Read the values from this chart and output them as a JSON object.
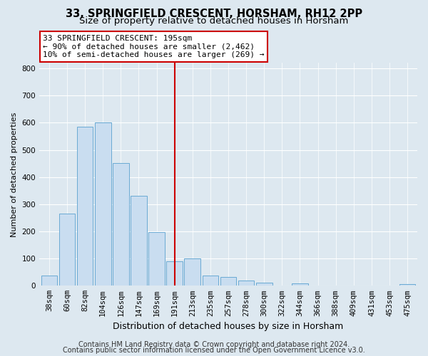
{
  "title": "33, SPRINGFIELD CRESCENT, HORSHAM, RH12 2PP",
  "subtitle": "Size of property relative to detached houses in Horsham",
  "xlabel": "Distribution of detached houses by size in Horsham",
  "ylabel": "Number of detached properties",
  "bar_labels": [
    "38sqm",
    "60sqm",
    "82sqm",
    "104sqm",
    "126sqm",
    "147sqm",
    "169sqm",
    "191sqm",
    "213sqm",
    "235sqm",
    "257sqm",
    "278sqm",
    "300sqm",
    "322sqm",
    "344sqm",
    "366sqm",
    "388sqm",
    "409sqm",
    "431sqm",
    "453sqm",
    "475sqm"
  ],
  "bar_values": [
    37,
    265,
    585,
    601,
    452,
    332,
    197,
    90,
    100,
    37,
    32,
    20,
    10,
    0,
    8,
    0,
    0,
    0,
    0,
    0,
    5
  ],
  "bar_color": "#c9ddf0",
  "bar_edge_color": "#6aaad4",
  "vline_index": 7,
  "vline_color": "#cc0000",
  "ylim": [
    0,
    820
  ],
  "yticks": [
    0,
    100,
    200,
    300,
    400,
    500,
    600,
    700,
    800
  ],
  "annotation_line1": "33 SPRINGFIELD CRESCENT: 195sqm",
  "annotation_line2": "← 90% of detached houses are smaller (2,462)",
  "annotation_line3": "10% of semi-detached houses are larger (269) →",
  "annotation_box_color": "#ffffff",
  "annotation_box_edge": "#cc0000",
  "footer_line1": "Contains HM Land Registry data © Crown copyright and database right 2024.",
  "footer_line2": "Contains public sector information licensed under the Open Government Licence v3.0.",
  "background_color": "#dde8f0",
  "plot_background": "#dde8f0",
  "grid_color": "#ffffff",
  "title_fontsize": 10.5,
  "subtitle_fontsize": 9.5,
  "ylabel_fontsize": 8,
  "xlabel_fontsize": 9,
  "tick_fontsize": 7.5,
  "annotation_fontsize": 8,
  "footer_fontsize": 7
}
